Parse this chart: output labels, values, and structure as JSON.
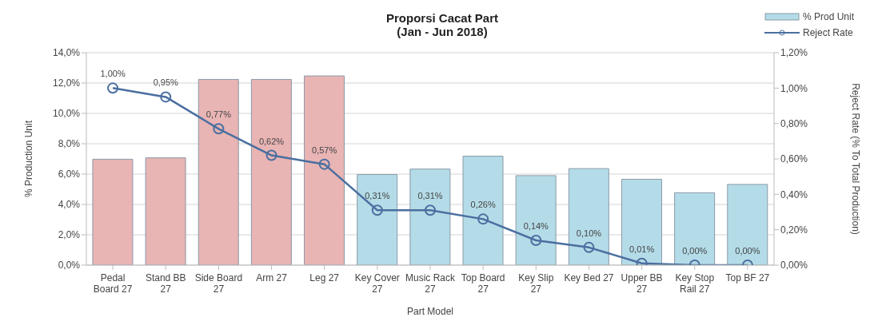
{
  "chart_data": {
    "type": "bar",
    "title": "Proporsi Cacat Part",
    "subtitle": "(Jan - Jun 2018)",
    "xlabel": "Part Model",
    "ylabel": "% Production Unit",
    "y2label": "Reject Rate (% To Total Production)",
    "categories": [
      "Pedal Board 27",
      "Stand BB 27",
      "Side Board 27",
      "Arm 27",
      "Leg 27",
      "Key Cover 27",
      "Music Rack 27",
      "Top Board 27",
      "Key Slip 27",
      "Key Bed 27",
      "Upper BB 27",
      "Key Stop Rail 27",
      "Top BF 27"
    ],
    "series": [
      {
        "name": "% Prod Unit",
        "color": "#b4dce8",
        "colors": [
          "#e8b4b4",
          "#e8b4b4",
          "#e8b4b4",
          "#e8b4b4",
          "#e8b4b4",
          "#b4dce8",
          "#b4dce8",
          "#b4dce8",
          "#b4dce8",
          "#b4dce8",
          "#b4dce8",
          "#b4dce8",
          "#b4dce8"
        ],
        "values": [
          6.98,
          7.07,
          12.24,
          12.24,
          12.47,
          5.97,
          6.33,
          7.18,
          5.9,
          6.36,
          5.66,
          4.77,
          5.32
        ]
      },
      {
        "name": "Reject Rate",
        "type": "line",
        "axis": "y2",
        "color": "#4a6fa0",
        "marker": "circle",
        "values": [
          1.0,
          0.95,
          0.77,
          0.62,
          0.57,
          0.31,
          0.31,
          0.26,
          0.14,
          0.1,
          0.01,
          0.0,
          0.0
        ],
        "value_labels": [
          "1,00%",
          "0,95%",
          "0,77%",
          "0,62%",
          "0,57%",
          "0,31%",
          "0,31%",
          "0,26%",
          "0,14%",
          "0,10%",
          "0,01%",
          "0,00%",
          "0,00%"
        ]
      }
    ],
    "ylim": [
      0,
      14
    ],
    "yticks": [
      {
        "value": 0,
        "label": "0,0%"
      },
      {
        "value": 2,
        "label": "2,0%"
      },
      {
        "value": 4,
        "label": "4,0%"
      },
      {
        "value": 6,
        "label": "6,0%"
      },
      {
        "value": 8,
        "label": "8,0%"
      },
      {
        "value": 10,
        "label": "10,0%"
      },
      {
        "value": 12,
        "label": "12,0%"
      },
      {
        "value": 14,
        "label": "14,0%"
      }
    ],
    "y2lim": [
      0,
      1.2
    ],
    "y2ticks": [
      {
        "value": 0,
        "label": "0,00%"
      },
      {
        "value": 0.2,
        "label": "0,20%"
      },
      {
        "value": 0.4,
        "label": "0,40%"
      },
      {
        "value": 0.6,
        "label": "0,60%"
      },
      {
        "value": 0.8,
        "label": "0,80%"
      },
      {
        "value": 1.0,
        "label": "1,00%"
      },
      {
        "value": 1.2,
        "label": "1,20%"
      }
    ],
    "grid": "y",
    "legend": "top right"
  }
}
